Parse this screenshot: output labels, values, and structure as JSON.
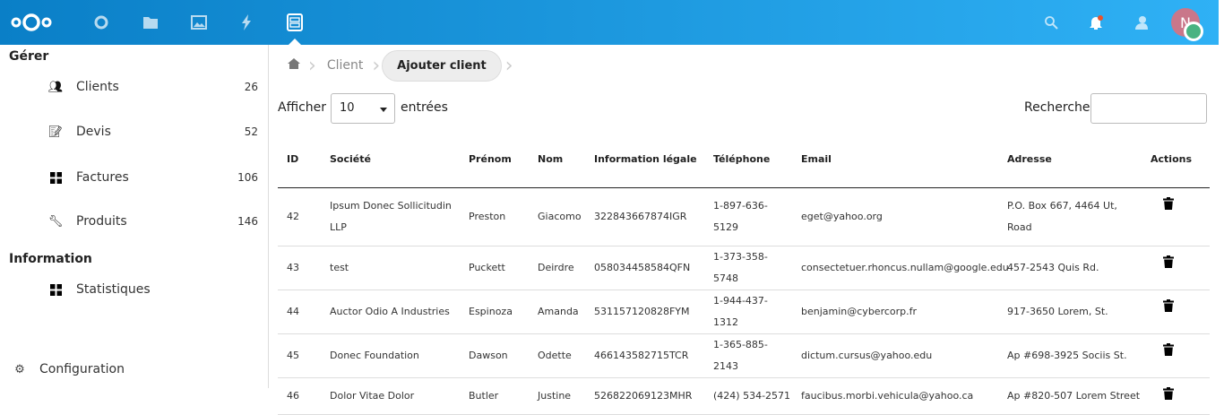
{
  "header": {
    "apps": [
      "dashboard-icon",
      "files-icon",
      "photos-icon",
      "activity-icon",
      "gestion-icon"
    ],
    "avatar_letter": "N",
    "colors": {
      "header_start": "#0a7fc7",
      "header_end": "#2fb1f5",
      "avatar": "#c9778a",
      "status": "#49b382",
      "notification_dot": "#e9522b"
    }
  },
  "sidebar": {
    "section1": "Gérer",
    "items": [
      {
        "label": "Clients",
        "count": "26"
      },
      {
        "label": "Devis",
        "count": "52"
      },
      {
        "label": "Factures",
        "count": "106"
      },
      {
        "label": "Produits",
        "count": "146"
      }
    ],
    "section2": "Information",
    "info_items": [
      {
        "label": "Statistiques"
      }
    ],
    "settings": "Configuration"
  },
  "breadcrumb": {
    "items": [
      "Client",
      "Ajouter client"
    ]
  },
  "controls": {
    "show_label": "Afficher",
    "page_size": "10",
    "entries_label": "entrées",
    "search_label": "Recherche",
    "search_value": ""
  },
  "table": {
    "headers": [
      "ID",
      "Société",
      "Prénom",
      "Nom",
      "Information légale",
      "Téléphone",
      "Email",
      "Adresse",
      "Actions"
    ],
    "rows": [
      [
        "42",
        "Ipsum Donec Sollicitudin LLP",
        "Preston",
        "Giacomo",
        "322843667874IGR",
        "1-897-636-5129",
        "eget@yahoo.org",
        "P.O. Box 667, 4464 Ut, Road"
      ],
      [
        "43",
        "test",
        "Puckett",
        "Deirdre",
        "058034458584QFN",
        "1-373-358-5748",
        "consectetuer.rhoncus.nullam@google.edu",
        "457-2543 Quis Rd."
      ],
      [
        "44",
        "Auctor Odio A Industries",
        "Espinoza",
        "Amanda",
        "531157120828FYM",
        "1-944-437-1312",
        "benjamin@cybercorp.fr",
        "917-3650 Lorem, St."
      ],
      [
        "45",
        "Donec Foundation",
        "Dawson",
        "Odette",
        "466143582715TCR",
        "1-365-885-2143",
        "dictum.cursus@yahoo.edu",
        "Ap #698-3925 Sociis St."
      ],
      [
        "46",
        "Dolor Vitae Dolor",
        "Butler",
        "Justine",
        "526822069123MHR",
        "(424) 534-2571",
        "faucibus.morbi.vehicula@yahoo.ca",
        "Ap #820-507 Lorem Street"
      ]
    ]
  }
}
